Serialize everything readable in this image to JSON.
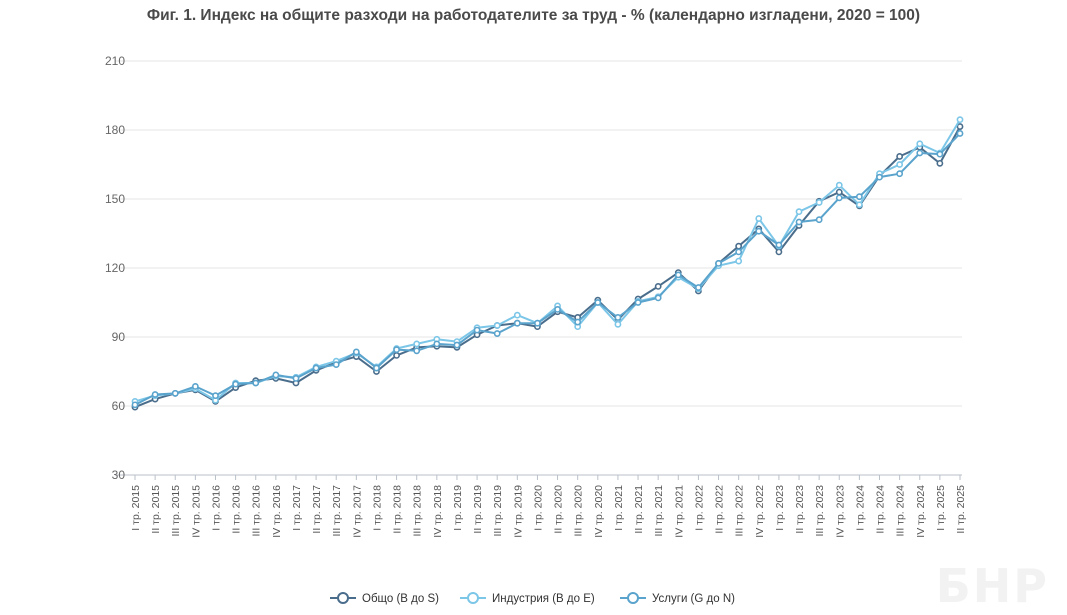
{
  "chart_data": {
    "type": "line",
    "title": "Фиг. 1. Индекс на общите разходи на работодателите за труд - % (календарно изгладени, 2020 = 100)",
    "xlabel": "",
    "ylabel": "",
    "ylim": [
      30,
      210
    ],
    "yticks": [
      "210",
      "180",
      "150",
      "120",
      "90",
      "60",
      "30"
    ],
    "grid": true,
    "legend_position": "bottom-center",
    "categories": [
      "I тр. 2015",
      "II тр. 2015",
      "III тр. 2015",
      "IV тр. 2015",
      "I тр. 2016",
      "II тр. 2016",
      "III тр. 2016",
      "IV тр. 2016",
      "I тр. 2017",
      "II тр. 2017",
      "III тр. 2017",
      "IV тр. 2017",
      "I тр. 2018",
      "II тр. 2018",
      "III тр. 2018",
      "IV тр. 2018",
      "I тр. 2019",
      "II тр. 2019",
      "III тр. 2019",
      "IV тр. 2019",
      "I тр. 2020",
      "II тр. 2020",
      "III тр. 2020",
      "IV тр. 2020",
      "I тр. 2021",
      "II тр. 2021",
      "III тр. 2021",
      "IV тр. 2021",
      "I тр. 2022",
      "II тр. 2022",
      "III тр. 2022",
      "IV тр. 2022",
      "I тр. 2023",
      "II тр. 2023",
      "III тр. 2023",
      "IV тр. 2023",
      "I тр. 2024",
      "II тр. 2024",
      "III тр. 2024",
      "IV тр. 2024",
      "I тр. 2025",
      "II тр. 2025"
    ],
    "series": [
      {
        "name": "Общо (B до S)",
        "color": "#4a6d8c",
        "values": [
          59.5,
          63,
          65.5,
          67,
          62,
          68,
          71,
          72,
          70,
          75.5,
          79,
          81.5,
          75,
          82,
          85.5,
          86,
          85.5,
          91,
          95,
          96,
          94.5,
          101,
          98.5,
          106,
          97.5,
          106.5,
          112,
          118,
          110,
          122,
          129.5,
          137,
          127,
          138.5,
          149,
          153,
          147,
          160,
          168.5,
          172.5,
          165.5,
          181.5
        ]
      },
      {
        "name": "Индустрия (B до E)",
        "color": "#7cc6e8",
        "values": [
          62,
          64.5,
          65.5,
          67.5,
          62.5,
          70,
          70,
          73,
          72.5,
          77,
          79.5,
          83,
          77,
          85,
          87,
          89,
          88,
          94,
          95,
          99.5,
          96,
          103.5,
          94.5,
          105,
          95.5,
          105.5,
          107.5,
          116,
          111,
          121,
          123,
          141.5,
          129.5,
          144.5,
          148.5,
          156,
          147.5,
          161,
          165,
          174,
          170,
          184.5
        ]
      },
      {
        "name": "Услуги (G до N)",
        "color": "#5aa3cc",
        "values": [
          60.5,
          65,
          65.5,
          68.5,
          64.5,
          69.5,
          70,
          73.5,
          72,
          76.5,
          78,
          83.5,
          76.5,
          84.5,
          84,
          87,
          86.5,
          93,
          91.5,
          96,
          96,
          102,
          96.5,
          105,
          98.5,
          105,
          107,
          117,
          111.5,
          122,
          127,
          136,
          130,
          140,
          141,
          150.5,
          151,
          159.5,
          161,
          170,
          169.5,
          178.5
        ]
      }
    ]
  },
  "watermark": "БНР"
}
